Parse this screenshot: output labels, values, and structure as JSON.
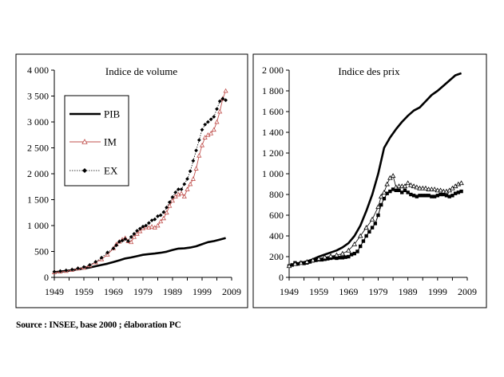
{
  "source_note": "Source : INSEE, base 2000 ; élaboration PC",
  "chart_data": [
    {
      "type": "line",
      "title": "Indice de volume",
      "xlabel": "",
      "ylabel": "",
      "xlim": [
        1949,
        2009
      ],
      "ylim": [
        0,
        4000
      ],
      "x_ticks": [
        "1949",
        "1959",
        "1969",
        "1979",
        "1989",
        "1999",
        "2009"
      ],
      "y_ticks": [
        "0",
        "500",
        "1 000",
        "1 500",
        "2 000",
        "2 500",
        "3 000",
        "3 500",
        "4 000"
      ],
      "grid": false,
      "legend": "top-left",
      "series": [
        {
          "name": "PIB",
          "color": "#000000",
          "x": [
            1949,
            1951,
            1953,
            1955,
            1957,
            1959,
            1961,
            1963,
            1965,
            1967,
            1969,
            1971,
            1973,
            1975,
            1977,
            1979,
            1981,
            1983,
            1985,
            1987,
            1989,
            1991,
            1993,
            1995,
            1997,
            1999,
            2001,
            2003,
            2005,
            2007
          ],
          "values": [
            100,
            112,
            125,
            138,
            155,
            172,
            190,
            215,
            240,
            265,
            295,
            330,
            365,
            385,
            410,
            435,
            450,
            460,
            475,
            495,
            530,
            555,
            560,
            575,
            600,
            640,
            680,
            700,
            730,
            760
          ]
        },
        {
          "name": "IM",
          "color": "#c0504d",
          "x": [
            1949,
            1951,
            1953,
            1955,
            1957,
            1959,
            1961,
            1963,
            1965,
            1967,
            1969,
            1970,
            1971,
            1972,
            1973,
            1974,
            1975,
            1976,
            1977,
            1978,
            1979,
            1980,
            1981,
            1982,
            1983,
            1984,
            1985,
            1986,
            1987,
            1988,
            1989,
            1990,
            1991,
            1992,
            1993,
            1994,
            1995,
            1996,
            1997,
            1998,
            1999,
            2000,
            2001,
            2002,
            2003,
            2004,
            2005,
            2006,
            2007
          ],
          "values": [
            100,
            110,
            125,
            145,
            170,
            185,
            230,
            290,
            350,
            440,
            560,
            640,
            690,
            730,
            760,
            700,
            680,
            780,
            840,
            890,
            950,
            970,
            960,
            980,
            960,
            1000,
            1080,
            1140,
            1250,
            1380,
            1480,
            1560,
            1600,
            1620,
            1560,
            1700,
            1800,
            1900,
            2100,
            2350,
            2550,
            2700,
            2750,
            2780,
            2850,
            3000,
            3200,
            3450,
            3600
          ]
        },
        {
          "name": "EX",
          "color": "#000000",
          "x": [
            1949,
            1951,
            1953,
            1955,
            1957,
            1959,
            1961,
            1963,
            1965,
            1967,
            1969,
            1970,
            1971,
            1972,
            1973,
            1974,
            1975,
            1976,
            1977,
            1978,
            1979,
            1980,
            1981,
            1982,
            1983,
            1984,
            1985,
            1986,
            1987,
            1988,
            1989,
            1990,
            1991,
            1992,
            1993,
            1994,
            1995,
            1996,
            1997,
            1998,
            1999,
            2000,
            2001,
            2002,
            2003,
            2004,
            2005,
            2006,
            2007
          ],
          "values": [
            110,
            120,
            135,
            150,
            175,
            200,
            240,
            300,
            380,
            480,
            560,
            620,
            690,
            710,
            740,
            700,
            780,
            840,
            900,
            940,
            980,
            1000,
            1050,
            1100,
            1120,
            1180,
            1200,
            1260,
            1350,
            1450,
            1550,
            1640,
            1700,
            1700,
            1800,
            1900,
            2050,
            2250,
            2450,
            2650,
            2850,
            2950,
            3000,
            3050,
            3100,
            3250,
            3400,
            3450,
            3420
          ]
        }
      ]
    },
    {
      "type": "line",
      "title": "Indice des prix",
      "xlabel": "",
      "ylabel": "",
      "xlim": [
        1949,
        2009
      ],
      "ylim": [
        0,
        2000
      ],
      "x_ticks": [
        "1949",
        "1959",
        "1969",
        "1979",
        "1989",
        "1999",
        "2009"
      ],
      "y_ticks": [
        "0",
        "200",
        "400",
        "600",
        "800",
        "1 000",
        "1 200",
        "1 400",
        "1 600",
        "1 800",
        "2 000"
      ],
      "grid": false,
      "legend": "none",
      "series": [
        {
          "color": "#000000",
          "x": [
            1949,
            1951,
            1953,
            1955,
            1957,
            1959,
            1961,
            1963,
            1965,
            1967,
            1969,
            1971,
            1973,
            1975,
            1977,
            1979,
            1981,
            1983,
            1985,
            1987,
            1989,
            1991,
            1993,
            1995,
            1997,
            1999,
            2001,
            2003,
            2005,
            2007
          ],
          "values": [
            110,
            125,
            140,
            155,
            175,
            200,
            220,
            240,
            260,
            290,
            330,
            400,
            500,
            640,
            800,
            1000,
            1250,
            1350,
            1430,
            1500,
            1560,
            1610,
            1640,
            1700,
            1760,
            1800,
            1850,
            1900,
            1950,
            1970
          ]
        },
        {
          "color": "#000000",
          "x": [
            1949,
            1950,
            1951,
            1952,
            1953,
            1954,
            1955,
            1956,
            1957,
            1958,
            1959,
            1960,
            1961,
            1962,
            1963,
            1964,
            1965,
            1966,
            1967,
            1968,
            1969,
            1970,
            1971,
            1972,
            1973,
            1974,
            1975,
            1976,
            1977,
            1978,
            1979,
            1980,
            1981,
            1982,
            1983,
            1984,
            1985,
            1986,
            1987,
            1988,
            1989,
            1990,
            1991,
            1992,
            1993,
            1994,
            1995,
            1996,
            1997,
            1998,
            1999,
            2000,
            2001,
            2002,
            2003,
            2004,
            2005,
            2006,
            2007
          ],
          "values": [
            110,
            120,
            140,
            130,
            140,
            135,
            140,
            150,
            160,
            165,
            170,
            170,
            175,
            180,
            185,
            190,
            185,
            190,
            190,
            195,
            200,
            220,
            230,
            250,
            300,
            350,
            400,
            440,
            480,
            520,
            600,
            700,
            760,
            810,
            830,
            850,
            840,
            840,
            820,
            840,
            820,
            800,
            790,
            780,
            790,
            790,
            790,
            790,
            780,
            780,
            790,
            800,
            800,
            790,
            780,
            790,
            810,
            820,
            830
          ]
        },
        {
          "color": "#000000",
          "x": [
            1949,
            1951,
            1953,
            1955,
            1957,
            1959,
            1961,
            1963,
            1965,
            1967,
            1969,
            1971,
            1973,
            1975,
            1977,
            1979,
            1980,
            1981,
            1982,
            1983,
            1984,
            1985,
            1986,
            1987,
            1988,
            1989,
            1990,
            1991,
            1992,
            1993,
            1994,
            1995,
            1996,
            1997,
            1998,
            1999,
            2000,
            2001,
            2002,
            2003,
            2004,
            2005,
            2006,
            2007
          ],
          "values": [
            110,
            130,
            140,
            150,
            165,
            180,
            195,
            205,
            215,
            230,
            260,
            320,
            400,
            480,
            560,
            680,
            780,
            820,
            900,
            960,
            980,
            870,
            880,
            880,
            880,
            910,
            890,
            880,
            870,
            860,
            860,
            860,
            850,
            850,
            850,
            840,
            840,
            830,
            830,
            840,
            860,
            880,
            900,
            910
          ]
        }
      ]
    }
  ]
}
